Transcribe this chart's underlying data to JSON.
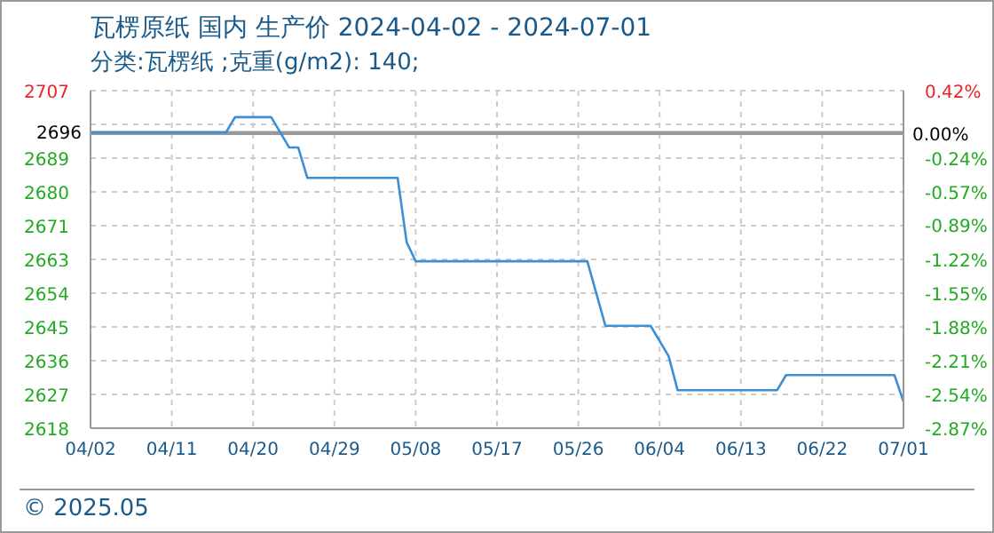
{
  "chart_data": {
    "type": "line",
    "title": "瓦楞原纸 国内 生产价 2024-04-02 - 2024-07-01",
    "subtitle": "分类:瓦楞纸 ;克重(g/m2): 140;",
    "annotations": [
      "© 2025.05"
    ],
    "x": [
      "2024-04-02",
      "2024-04-17",
      "2024-04-18",
      "2024-04-22",
      "2024-04-24",
      "2024-04-25",
      "2024-04-26",
      "2024-05-06",
      "2024-05-07",
      "2024-05-08",
      "2024-05-27",
      "2024-05-29",
      "2024-06-03",
      "2024-06-05",
      "2024-06-06",
      "2024-06-17",
      "2024-06-18",
      "2024-06-30",
      "2024-07-01"
    ],
    "series": [
      {
        "color": "#3a8fd6",
        "values": [
          2696,
          2696,
          2700,
          2700,
          2692,
          2692,
          2684,
          2684,
          2667,
          2662,
          2662,
          2645,
          2645,
          2637,
          2628,
          2628,
          2632,
          2632,
          2625
        ]
      }
    ],
    "xlim": [
      "2024-04-02",
      "2024-07-01"
    ],
    "xticks": [
      {
        "value": "2024-04-02",
        "label": "04/02"
      },
      {
        "value": "2024-04-11",
        "label": "04/11"
      },
      {
        "value": "2024-04-20",
        "label": "04/20"
      },
      {
        "value": "2024-04-29",
        "label": "04/29"
      },
      {
        "value": "2024-05-08",
        "label": "05/08"
      },
      {
        "value": "2024-05-17",
        "label": "05/17"
      },
      {
        "value": "2024-05-26",
        "label": "05/26"
      },
      {
        "value": "2024-06-04",
        "label": "06/04"
      },
      {
        "value": "2024-06-13",
        "label": "06/13"
      },
      {
        "value": "2024-06-22",
        "label": "06/22"
      },
      {
        "value": "2024-07-01",
        "label": "07/01"
      }
    ],
    "ylim": [
      2618,
      2707
    ],
    "yticks": [
      2707,
      {
        "value": 2698.1,
        "label": null
      },
      {
        "value": 2689.2,
        "label": "2689"
      },
      {
        "value": 2680.3,
        "label": "2680"
      },
      {
        "value": 2671.4,
        "label": "2671"
      },
      {
        "value": 2662.5,
        "label": "2663"
      },
      {
        "value": 2653.6,
        "label": "2654"
      },
      {
        "value": 2644.7,
        "label": "2645"
      },
      {
        "value": 2635.8,
        "label": "2636"
      },
      {
        "value": 2626.9,
        "label": "2627"
      },
      2618
    ],
    "y2lim": [
      -2.87,
      0.42
    ],
    "y2ticks": [
      {
        "value": 0.42,
        "label": "0.42%"
      },
      {
        "value": -0.238,
        "label": "-0.24%"
      },
      {
        "value": -0.567,
        "label": "-0.57%"
      },
      {
        "value": -0.89,
        "label": "-0.89%"
      },
      {
        "value": -1.225,
        "label": "-1.22%"
      },
      {
        "value": -1.554,
        "label": "-1.55%"
      },
      {
        "value": -1.883,
        "label": "-1.88%"
      },
      {
        "value": -2.212,
        "label": "-2.21%"
      },
      {
        "value": -2.541,
        "label": "-2.54%"
      },
      {
        "value": -2.87,
        "label": "-2.87%"
      }
    ],
    "ref_lines": [
      {
        "axis": "y",
        "value": 2696,
        "label": "2696",
        "color": "#999999"
      },
      {
        "axis": "y2",
        "value": 0,
        "label": "0.00%",
        "color": "#999999"
      }
    ],
    "grid": true,
    "legend": false,
    "marker": "none",
    "line_style": "solid"
  }
}
